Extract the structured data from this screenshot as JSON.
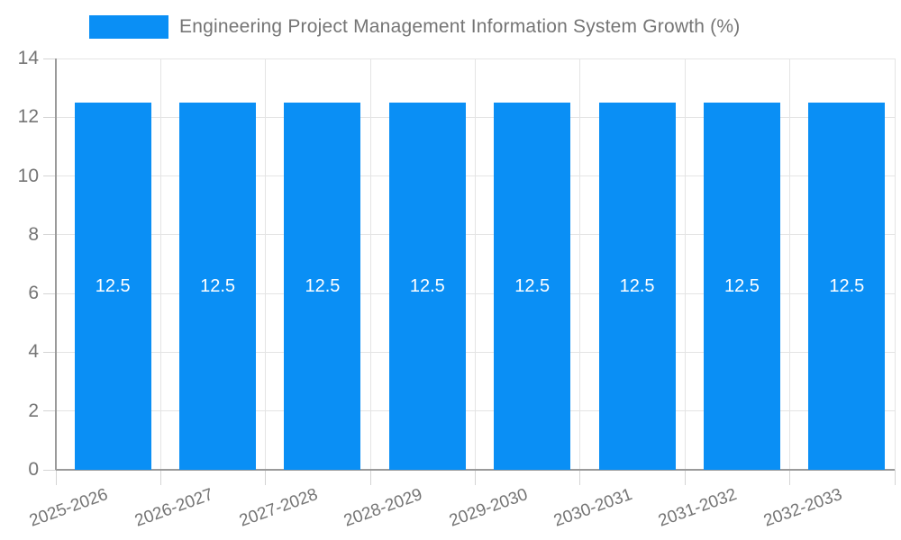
{
  "chart_data": {
    "type": "bar",
    "title": "Engineering Project Management Information System Growth (%)",
    "categories": [
      "2025-2026",
      "2026-2027",
      "2027-2028",
      "2028-2029",
      "2029-2030",
      "2030-2031",
      "2031-2032",
      "2032-2033"
    ],
    "values": [
      12.5,
      12.5,
      12.5,
      12.5,
      12.5,
      12.5,
      12.5,
      12.5
    ],
    "data_labels": [
      "12.5",
      "12.5",
      "12.5",
      "12.5",
      "12.5",
      "12.5",
      "12.5",
      "12.5"
    ],
    "xlabel": "",
    "ylabel": "",
    "ylim": [
      0,
      14
    ],
    "y_ticks": [
      0,
      2,
      4,
      6,
      8,
      10,
      12,
      14
    ],
    "grid": true,
    "legend_position": "top",
    "x_label_rotation_deg": -20,
    "colors": {
      "bar": "#0a8ff5",
      "data_label": "#ffffff",
      "axis_text": "#757575",
      "grid_line": "#e4e4e4",
      "tick_line": "#d4d4d4",
      "axis_line": "#9a9a9a",
      "background": "#ffffff"
    }
  }
}
